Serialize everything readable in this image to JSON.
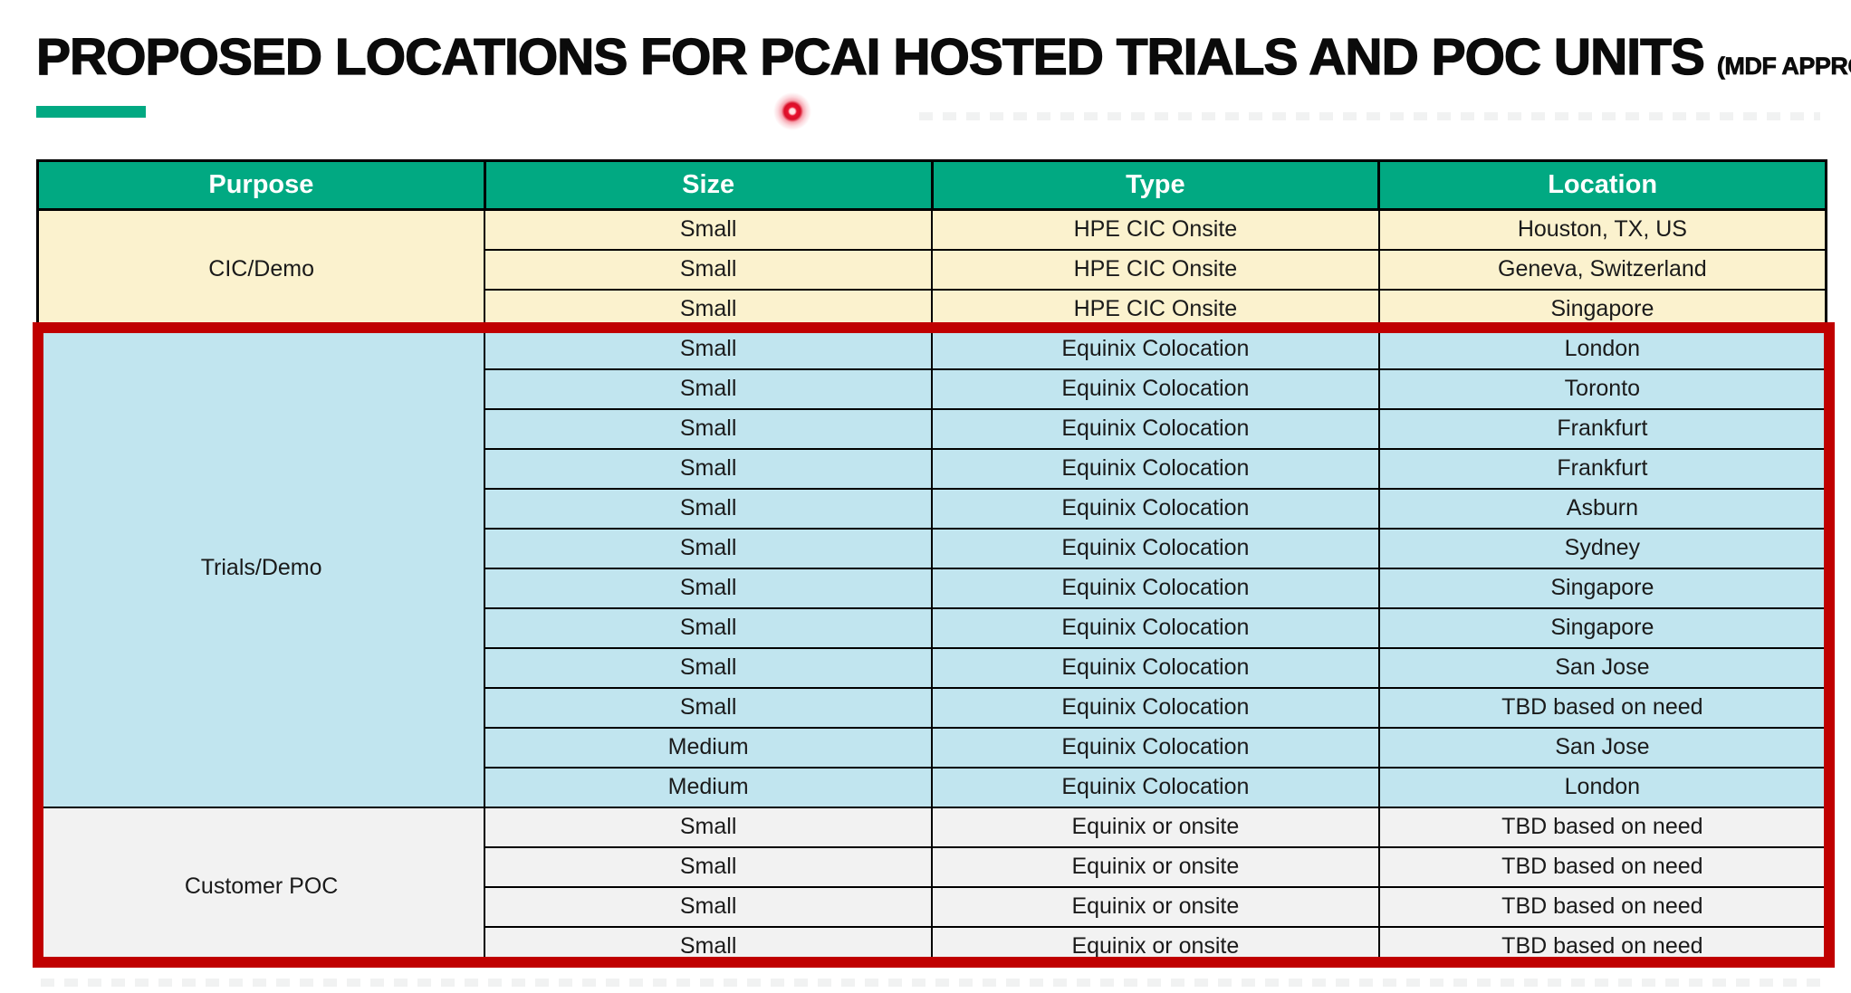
{
  "title": {
    "main": "PROPOSED LOCATIONS FOR PCAI HOSTED TRIALS AND POC UNITS",
    "suffix": "(MDF APPROVED)"
  },
  "colors": {
    "accent_green": "#01A982",
    "header_bg": "#01A982",
    "header_text": "#FFFFFF",
    "cic_demo_bg": "#FBF2CE",
    "trials_demo_bg": "#C1E5EF",
    "customer_poc_bg": "#F2F2F2",
    "grid_line": "#000000",
    "highlight_border": "#C00000",
    "laser_dot": "#E8112D",
    "body_text": "#1A1A1A"
  },
  "table": {
    "columns": [
      "Purpose",
      "Size",
      "Type",
      "Location"
    ],
    "groups": [
      {
        "purpose": "CIC/Demo",
        "bg_key": "cic_demo_bg",
        "rows": [
          [
            "Small",
            "HPE CIC Onsite",
            "Houston, TX, US"
          ],
          [
            "Small",
            "HPE CIC Onsite",
            "Geneva, Switzerland"
          ],
          [
            "Small",
            "HPE CIC Onsite",
            "Singapore"
          ]
        ]
      },
      {
        "purpose": "Trials/Demo",
        "bg_key": "trials_demo_bg",
        "rows": [
          [
            "Small",
            "Equinix Colocation",
            "London"
          ],
          [
            "Small",
            "Equinix Colocation",
            "Toronto"
          ],
          [
            "Small",
            "Equinix Colocation",
            "Frankfurt"
          ],
          [
            "Small",
            "Equinix Colocation",
            "Frankfurt"
          ],
          [
            "Small",
            "Equinix Colocation",
            "Asburn"
          ],
          [
            "Small",
            "Equinix Colocation",
            "Sydney"
          ],
          [
            "Small",
            "Equinix Colocation",
            "Singapore"
          ],
          [
            "Small",
            "Equinix Colocation",
            "Singapore"
          ],
          [
            "Small",
            "Equinix Colocation",
            "San Jose"
          ],
          [
            "Small",
            "Equinix Colocation",
            "TBD based on need"
          ],
          [
            "Medium",
            "Equinix Colocation",
            "San Jose"
          ],
          [
            "Medium",
            "Equinix Colocation",
            "London"
          ]
        ]
      },
      {
        "purpose": "Customer POC",
        "bg_key": "customer_poc_bg",
        "rows": [
          [
            "Small",
            "Equinix or onsite",
            "TBD based on need"
          ],
          [
            "Small",
            "Equinix or onsite",
            "TBD based on need"
          ],
          [
            "Small",
            "Equinix or onsite",
            "TBD based on need"
          ],
          [
            "Small",
            "Equinix or onsite",
            "TBD based on need"
          ]
        ]
      }
    ]
  }
}
